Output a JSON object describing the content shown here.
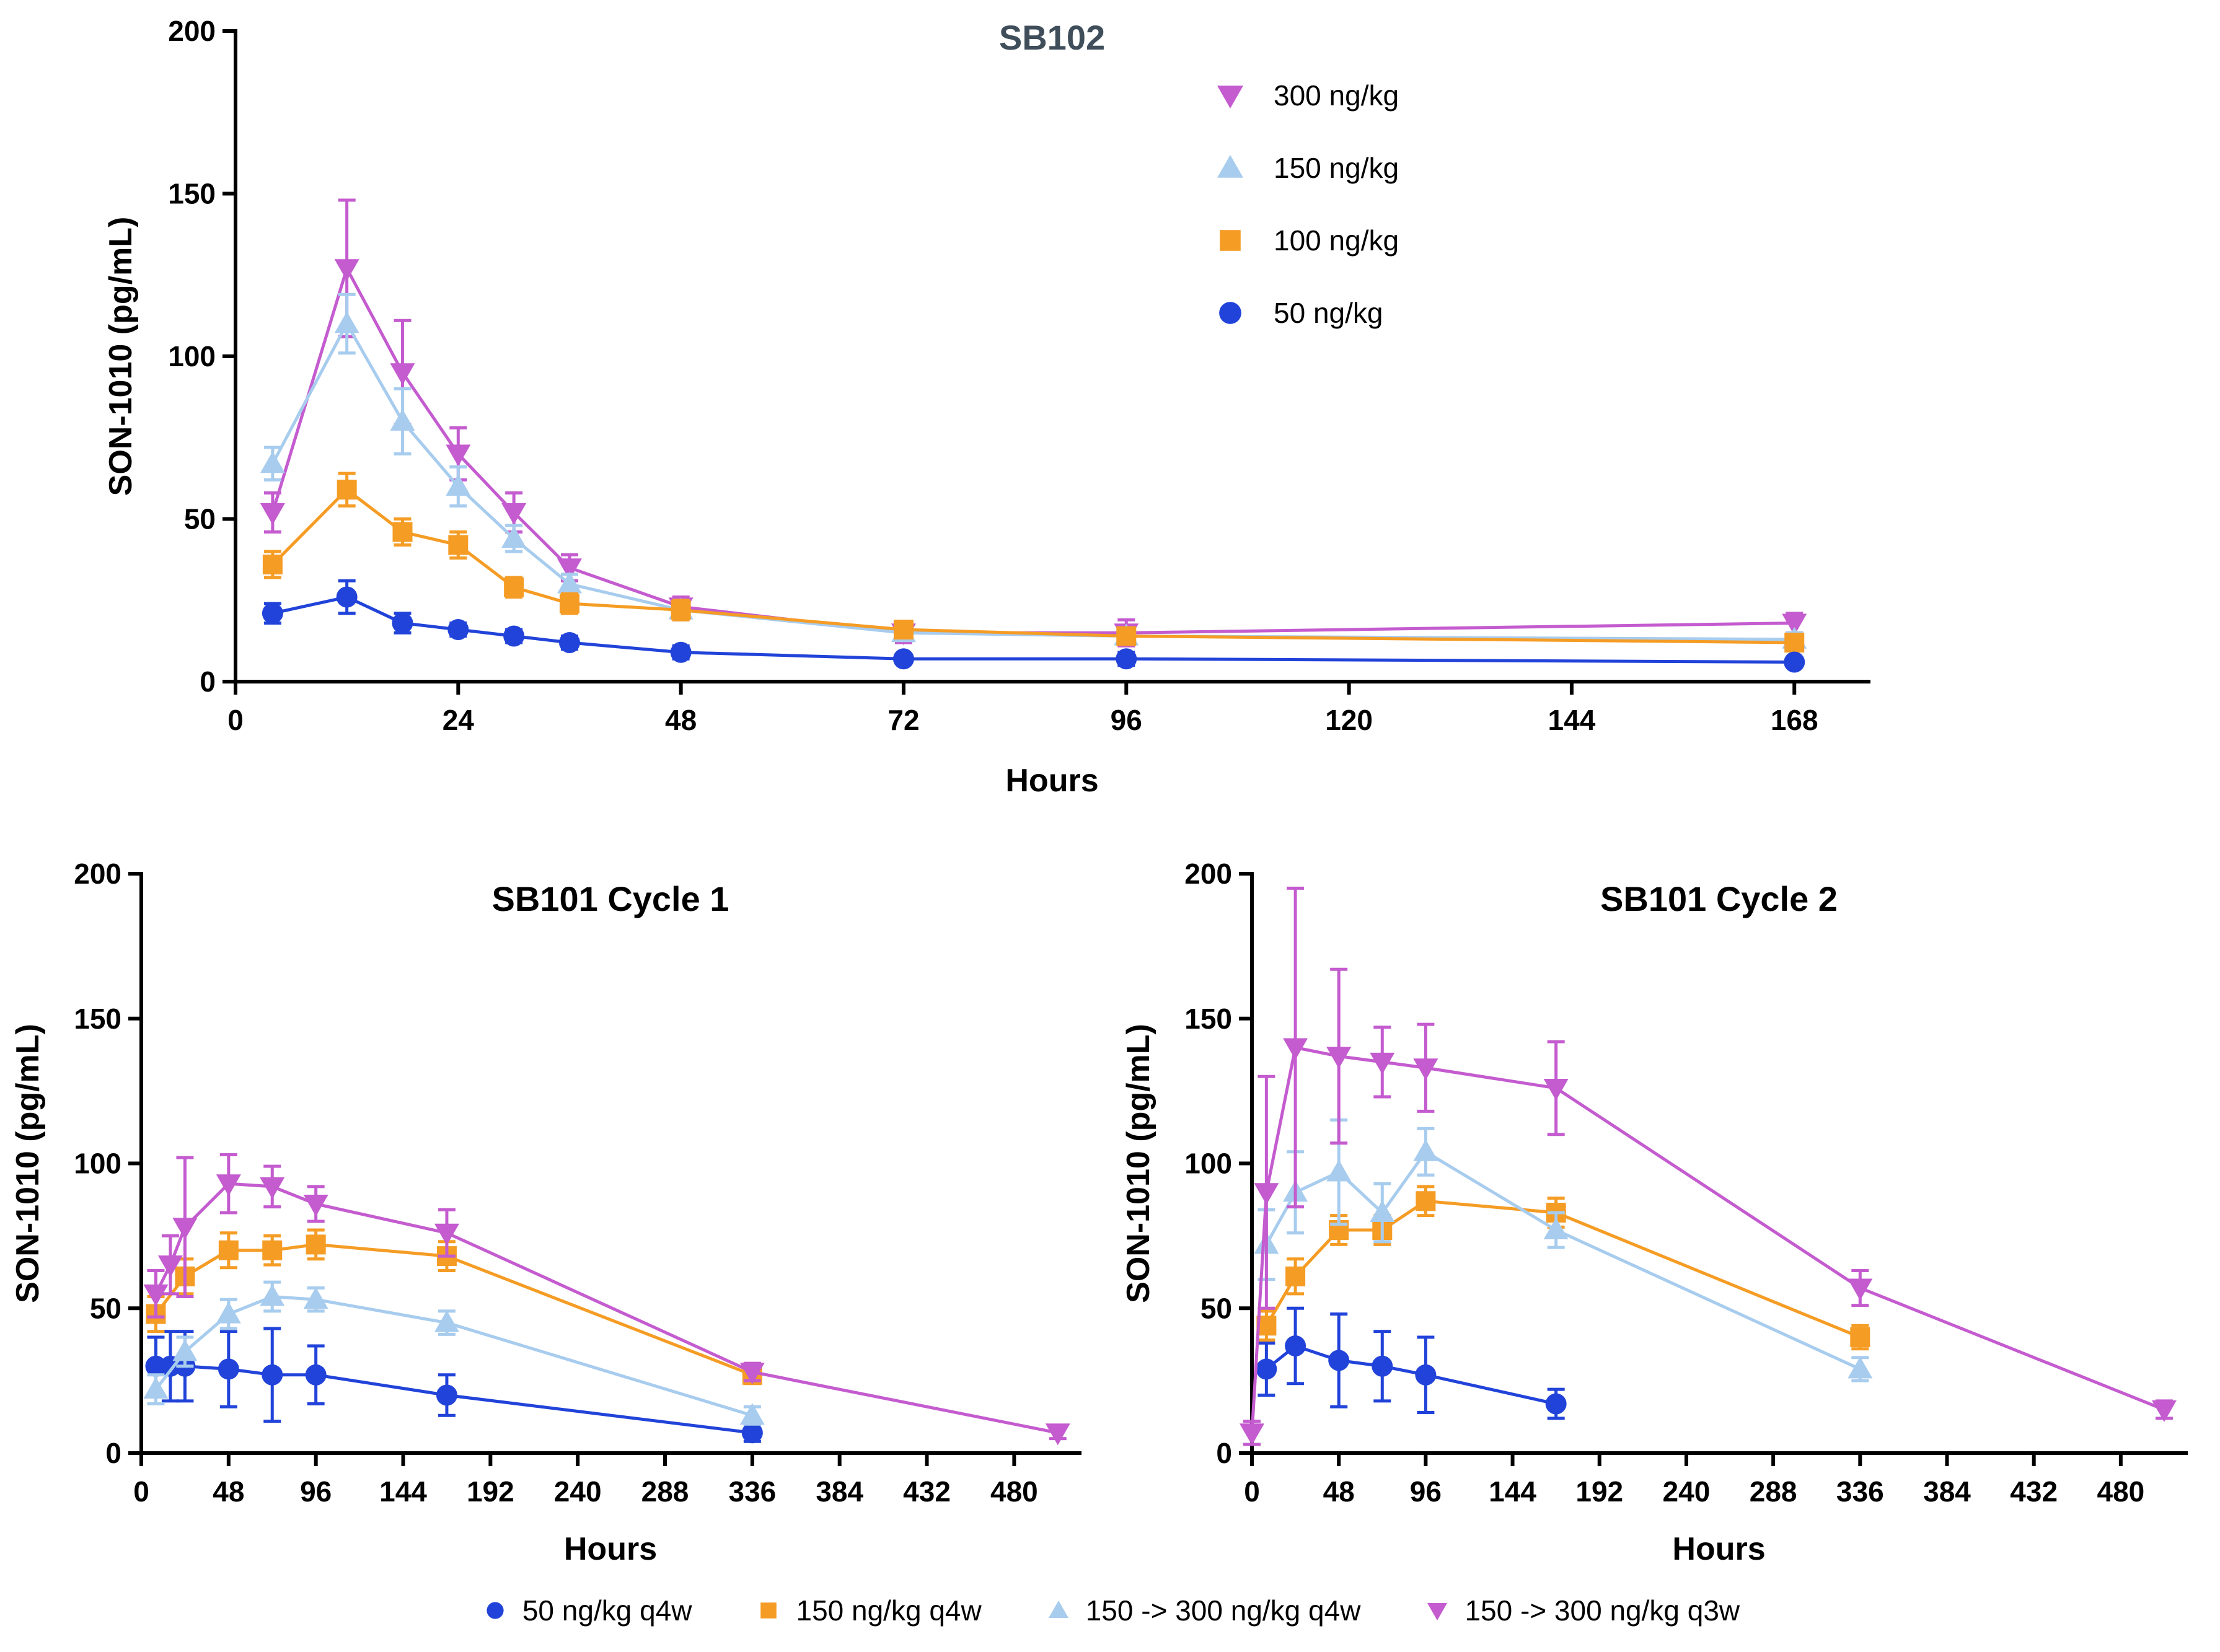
{
  "colors": {
    "blue": "#2143D9",
    "orange": "#F59C25",
    "lightblue": "#A7CCEE",
    "magenta": "#C45BCF",
    "axis": "#000000",
    "sb102_title": "#3F4E5A"
  },
  "chart_data": [
    {
      "id": "sb102",
      "type": "line",
      "title": "SB102",
      "title_color": "#3F4E5A",
      "xlabel": "Hours",
      "ylabel": "SON-1010 (pg/mL)",
      "xlim": [
        0,
        176
      ],
      "ylim": [
        0,
        200
      ],
      "xticks": [
        0,
        24,
        48,
        72,
        96,
        120,
        144,
        168
      ],
      "yticks": [
        0,
        50,
        100,
        150,
        200
      ],
      "legend_in_chart": true,
      "series": [
        {
          "name": "300 ng/kg",
          "marker": "triangle-down",
          "color_key": "magenta",
          "x": [
            4,
            12,
            18,
            24,
            30,
            36,
            48,
            72,
            96,
            168
          ],
          "y": [
            52,
            127,
            95,
            70,
            52,
            35,
            23,
            15,
            15,
            18
          ],
          "err": [
            6,
            21,
            16,
            8,
            6,
            4,
            3,
            3,
            4,
            3
          ]
        },
        {
          "name": "150 ng/kg",
          "marker": "triangle-up",
          "color_key": "lightblue",
          "x": [
            4,
            12,
            18,
            24,
            30,
            36,
            48,
            72,
            96,
            168
          ],
          "y": [
            67,
            110,
            80,
            60,
            44,
            30,
            22,
            15,
            14,
            13
          ],
          "err": [
            5,
            9,
            10,
            6,
            4,
            3,
            3,
            2,
            2,
            2
          ]
        },
        {
          "name": "100 ng/kg",
          "marker": "square",
          "color_key": "orange",
          "x": [
            4,
            12,
            18,
            24,
            30,
            36,
            48,
            72,
            96,
            168
          ],
          "y": [
            36,
            59,
            46,
            42,
            29,
            24,
            22,
            16,
            14,
            12
          ],
          "err": [
            4,
            5,
            4,
            4,
            3,
            3,
            3,
            2,
            2,
            2
          ]
        },
        {
          "name": "50 ng/kg",
          "marker": "circle",
          "color_key": "blue",
          "x": [
            4,
            12,
            18,
            24,
            30,
            36,
            48,
            72,
            96,
            168
          ],
          "y": [
            21,
            26,
            18,
            16,
            14,
            12,
            9,
            7,
            7,
            6
          ],
          "err": [
            3,
            5,
            3,
            2,
            2,
            2,
            2,
            1,
            2,
            1
          ]
        }
      ]
    },
    {
      "id": "cycle1",
      "type": "line",
      "title": "SB101 Cycle 1",
      "title_color": "#000000",
      "xlabel": "Hours",
      "ylabel": "SON-1010 (pg/mL)",
      "xlim": [
        0,
        516
      ],
      "ylim": [
        0,
        200
      ],
      "xticks": [
        0,
        48,
        96,
        144,
        192,
        240,
        288,
        336,
        384,
        432,
        480
      ],
      "yticks": [
        0,
        50,
        100,
        150,
        200
      ],
      "legend_in_chart": false,
      "series": [
        {
          "name": "50 ng/kg q4w",
          "marker": "circle",
          "color_key": "blue",
          "x": [
            8,
            16,
            24,
            48,
            72,
            96,
            168,
            336
          ],
          "y": [
            30,
            30,
            30,
            29,
            27,
            27,
            20,
            7
          ],
          "err": [
            10,
            12,
            12,
            13,
            16,
            10,
            7,
            3
          ]
        },
        {
          "name": "150 ng/kg q4w",
          "marker": "square",
          "color_key": "orange",
          "x": [
            8,
            24,
            48,
            72,
            96,
            168,
            336
          ],
          "y": [
            48,
            61,
            70,
            70,
            72,
            68,
            27
          ],
          "err": [
            6,
            6,
            6,
            5,
            5,
            5,
            3
          ]
        },
        {
          "name": "150 -> 300 ng/kg q4w",
          "marker": "triangle-up",
          "color_key": "lightblue",
          "x": [
            8,
            24,
            48,
            72,
            96,
            168,
            336
          ],
          "y": [
            22,
            35,
            48,
            54,
            53,
            45,
            13
          ],
          "err": [
            5,
            5,
            5,
            5,
            4,
            4,
            3
          ]
        },
        {
          "name": "150 -> 300 ng/kg q3w",
          "marker": "triangle-down",
          "color_key": "magenta",
          "x": [
            8,
            16,
            24,
            48,
            72,
            96,
            168,
            336,
            504
          ],
          "y": [
            55,
            65,
            78,
            93,
            92,
            86,
            76,
            28,
            7
          ],
          "err": [
            8,
            10,
            24,
            10,
            7,
            6,
            8,
            3,
            2
          ]
        }
      ]
    },
    {
      "id": "cycle2",
      "type": "line",
      "title": "SB101 Cycle 2",
      "title_color": "#000000",
      "xlabel": "Hours",
      "ylabel": "SON-1010 (pg/mL)",
      "xlim": [
        0,
        516
      ],
      "ylim": [
        0,
        200
      ],
      "xticks": [
        0,
        48,
        96,
        144,
        192,
        240,
        288,
        336,
        384,
        432,
        480
      ],
      "yticks": [
        0,
        50,
        100,
        150,
        200
      ],
      "legend_in_chart": false,
      "series": [
        {
          "name": "50 ng/kg q4w",
          "marker": "circle",
          "color_key": "blue",
          "x": [
            8,
            24,
            48,
            72,
            96,
            168
          ],
          "y": [
            29,
            37,
            32,
            30,
            27,
            17
          ],
          "err": [
            9,
            13,
            16,
            12,
            13,
            5
          ]
        },
        {
          "name": "150 ng/kg q4w",
          "marker": "square",
          "color_key": "orange",
          "x": [
            8,
            24,
            48,
            72,
            96,
            168,
            336
          ],
          "y": [
            44,
            61,
            77,
            77,
            87,
            83,
            40
          ],
          "err": [
            5,
            6,
            5,
            5,
            5,
            5,
            4
          ]
        },
        {
          "name": "150 -> 300 ng/kg q4w",
          "marker": "triangle-up",
          "color_key": "lightblue",
          "x": [
            8,
            24,
            48,
            72,
            96,
            168,
            336
          ],
          "y": [
            72,
            90,
            97,
            83,
            104,
            77,
            29
          ],
          "err": [
            12,
            14,
            18,
            10,
            8,
            6,
            4
          ]
        },
        {
          "name": "150 -> 300 ng/kg q3w",
          "marker": "triangle-down",
          "color_key": "magenta",
          "x": [
            0,
            8,
            24,
            48,
            72,
            96,
            168,
            336,
            504
          ],
          "y": [
            7,
            90,
            140,
            137,
            135,
            133,
            126,
            57,
            15
          ],
          "err": [
            4,
            40,
            55,
            30,
            12,
            15,
            16,
            6,
            3
          ]
        }
      ]
    }
  ],
  "bottom_legend": {
    "entries": [
      {
        "label": "50 ng/kg q4w",
        "marker": "circle",
        "color_key": "blue"
      },
      {
        "label": "150 ng/kg q4w",
        "marker": "square",
        "color_key": "orange"
      },
      {
        "label": "150 -> 300 ng/kg q4w",
        "marker": "triangle-up",
        "color_key": "lightblue"
      },
      {
        "label": "150 -> 300 ng/kg q3w",
        "marker": "triangle-down",
        "color_key": "magenta"
      }
    ]
  }
}
